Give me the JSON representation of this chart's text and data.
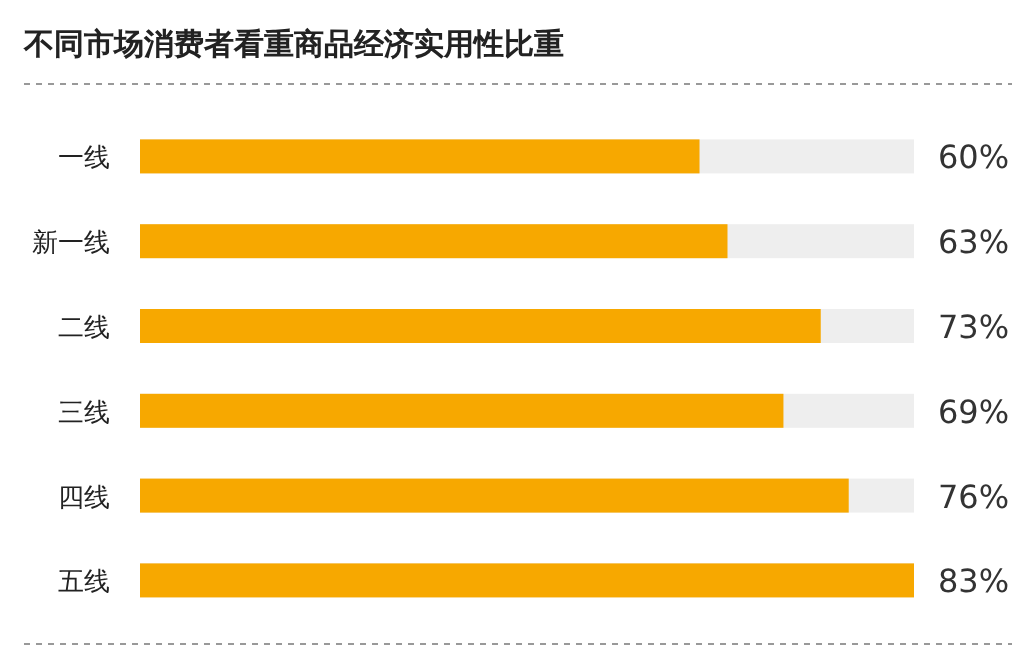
{
  "chart_data": {
    "type": "bar",
    "orientation": "horizontal",
    "title": "不同市场消费者看重商品经济实用性比重",
    "categories": [
      "一线",
      "新一线",
      "二线",
      "三线",
      "四线",
      "五线"
    ],
    "values": [
      60,
      63,
      73,
      69,
      76,
      83
    ],
    "value_labels": [
      "60%",
      "63%",
      "73%",
      "69%",
      "76%",
      "83%"
    ],
    "color": "#f7a800"
  }
}
